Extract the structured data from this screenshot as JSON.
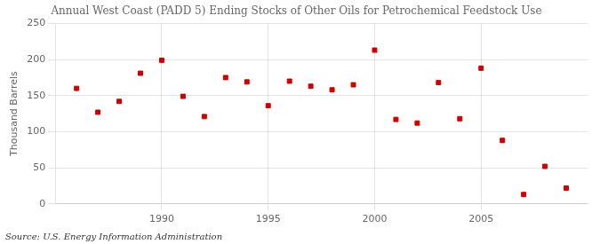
{
  "chart_data": {
    "type": "scatter",
    "title": "Annual West Coast (PADD 5) Ending Stocks of Other Oils for Petrochemical Feedstock Use",
    "ylabel": "Thousand Barrels",
    "annotations": [
      "Source: U.S. Energy Information Administration"
    ],
    "x": [
      1986,
      1987,
      1988,
      1989,
      1990,
      1991,
      1992,
      1993,
      1994,
      1995,
      1996,
      1997,
      1998,
      1999,
      2000,
      2001,
      2002,
      2003,
      2004,
      2005,
      2006,
      2007,
      2008,
      2009
    ],
    "values": [
      160,
      127,
      142,
      181,
      199,
      149,
      121,
      175,
      169,
      136,
      170,
      163,
      158,
      165,
      213,
      117,
      112,
      168,
      118,
      188,
      88,
      13,
      52,
      22
    ],
    "color": "#cc0000",
    "marker": "square",
    "xlim": [
      1985,
      2010
    ],
    "xticks": [
      1990,
      1995,
      2000,
      2005
    ],
    "ylim": [
      0,
      250
    ],
    "yticks": [
      0,
      50,
      100,
      150,
      200,
      250
    ],
    "grid": true
  }
}
